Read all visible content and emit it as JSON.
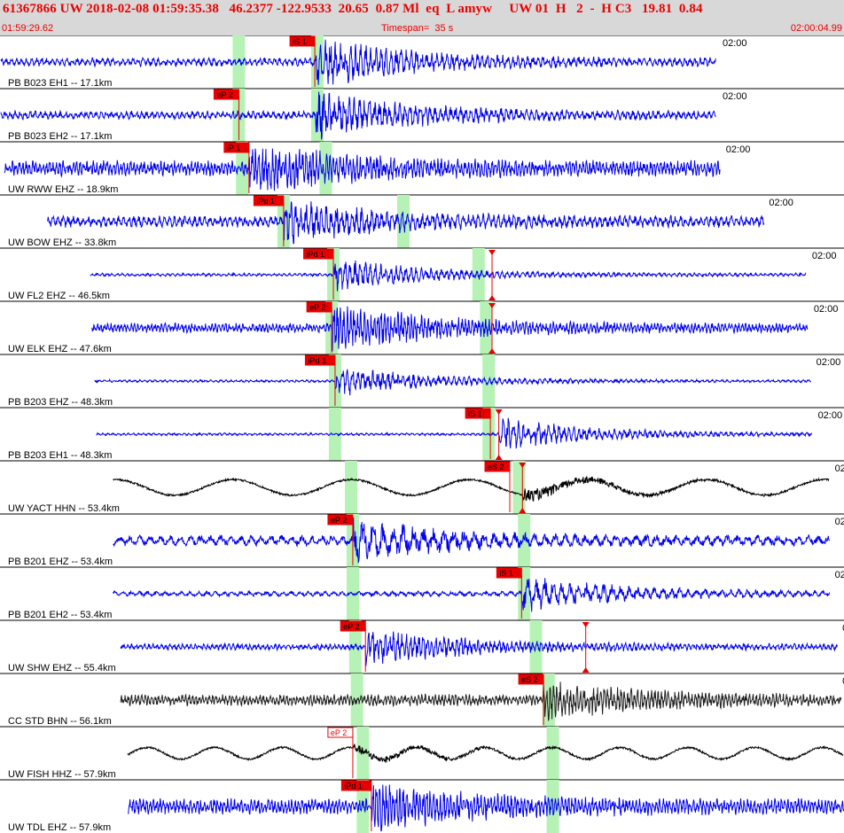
{
  "header": {
    "title": "61367866 UW 2018-02-08 01:59:35.38   46.2377 -122.9533  20.65  0.87 Ml  eq  L amyw     UW 01  H   2  -  H C3   19.81  0.84",
    "start_time": "01:59:29.62",
    "timespan": "Timespan=  35 s",
    "end_time": "02:00:04.99"
  },
  "time_marker_label": "02:00",
  "traces": [
    {
      "label": "PB B023 EH1 -- 17.1km",
      "color": "#0000ee",
      "start": 0.001,
      "end": 0.848,
      "amp": 0.16,
      "period": 0.006,
      "burst": 0.374,
      "burst_amp": 0.85,
      "green": [
        0.283,
        0.376
      ],
      "picks": [
        {
          "label": "iS 1",
          "at": 0.373,
          "style": "filled"
        }
      ],
      "triangles": []
    },
    {
      "label": "PB B023 EH2 -- 17.1km",
      "color": "#0000ee",
      "start": 0.001,
      "end": 0.848,
      "amp": 0.16,
      "period": 0.006,
      "burst": 0.374,
      "burst_amp": 0.85,
      "green": [
        0.283,
        0.376
      ],
      "picks": [
        {
          "label": "eP 2",
          "at": 0.283,
          "style": "filled"
        }
      ],
      "triangles": []
    },
    {
      "label": "UW RWW EHZ -- 18.9km",
      "color": "#0000ee",
      "start": 0.005,
      "end": 0.853,
      "amp": 0.3,
      "period": 0.004,
      "burst": 0.295,
      "burst_amp": 0.8,
      "green": [
        0.287,
        0.386
      ],
      "picks": [
        {
          "label": "iP 1",
          "at": 0.295,
          "style": "filled"
        }
      ],
      "triangles": []
    },
    {
      "label": "UW BOW EHZ -- 33.8km",
      "color": "#0000ee",
      "start": 0.056,
      "end": 0.905,
      "amp": 0.22,
      "period": 0.006,
      "burst": 0.336,
      "burst_amp": 0.7,
      "green": [
        0.336,
        0.478
      ],
      "picks": [
        {
          "label": "iPd 1",
          "at": 0.336,
          "style": "filled"
        }
      ],
      "triangles": []
    },
    {
      "label": "UW FL2 EHZ -- 46.5km",
      "color": "#0000ee",
      "start": 0.107,
      "end": 0.955,
      "amp": 0.06,
      "period": 0.006,
      "burst": 0.395,
      "burst_amp": 0.6,
      "green": [
        0.395,
        0.567
      ],
      "picks": [
        {
          "label": "iPd 1",
          "at": 0.395,
          "style": "filled"
        }
      ],
      "triangles": [
        0.583
      ]
    },
    {
      "label": "UW ELK EHZ -- 47.6km",
      "color": "#0000ee",
      "start": 0.109,
      "end": 0.957,
      "amp": 0.18,
      "period": 0.004,
      "burst": 0.393,
      "burst_amp": 0.85,
      "green": [
        0.393,
        0.576
      ],
      "picks": [
        {
          "label": "eP 2",
          "at": 0.393,
          "style": "filled"
        }
      ],
      "triangles": [
        0.583
      ]
    },
    {
      "label": "PB B203 EHZ -- 48.3km",
      "color": "#0000ee",
      "start": 0.112,
      "end": 0.961,
      "amp": 0.05,
      "period": 0.006,
      "burst": 0.397,
      "burst_amp": 0.55,
      "green": [
        0.397,
        0.579
      ],
      "picks": [
        {
          "label": "iPd 1",
          "at": 0.397,
          "style": "filled"
        }
      ],
      "triangles": []
    },
    {
      "label": "PB B203 EH1 -- 48.3km",
      "color": "#0000ee",
      "start": 0.114,
      "end": 0.962,
      "amp": 0.05,
      "period": 0.006,
      "burst": 0.591,
      "burst_amp": 0.6,
      "green": [
        0.397,
        0.579
      ],
      "picks": [
        {
          "label": "iS 1",
          "at": 0.581,
          "style": "filled"
        }
      ],
      "triangles": [
        0.591
      ]
    },
    {
      "label": "UW YACT HHN -- 53.4km",
      "color": "#000000",
      "start": 0.134,
      "end": 0.982,
      "amp": 0.38,
      "period": 0.14,
      "burst": 0.619,
      "burst_amp": 0.55,
      "green": [
        0.416,
        0.615
      ],
      "picks": [
        {
          "label": "eS 2",
          "at": 0.604,
          "style": "filled"
        }
      ],
      "triangles": [
        0.619
      ]
    },
    {
      "label": "PB B201 EHZ -- 53.4km",
      "color": "#0000ee",
      "start": 0.134,
      "end": 0.983,
      "amp": 0.2,
      "period": 0.012,
      "burst": 0.418,
      "burst_amp": 0.7,
      "green": [
        0.418,
        0.621
      ],
      "picks": [
        {
          "label": "eP 2",
          "at": 0.418,
          "style": "filled"
        }
      ],
      "triangles": []
    },
    {
      "label": "PB B201 EH2 -- 53.4km",
      "color": "#0000ee",
      "start": 0.134,
      "end": 0.983,
      "amp": 0.1,
      "period": 0.01,
      "burst": 0.618,
      "burst_amp": 0.65,
      "green": [
        0.418,
        0.621
      ],
      "picks": [
        {
          "label": "iS 1",
          "at": 0.618,
          "style": "filled"
        }
      ],
      "triangles": []
    },
    {
      "label": "UW SHW EHZ -- 55.4km",
      "color": "#0000ee",
      "start": 0.143,
      "end": 0.992,
      "amp": 0.12,
      "period": 0.005,
      "burst": 0.433,
      "burst_amp": 0.65,
      "green": [
        0.421,
        0.635
      ],
      "picks": [
        {
          "label": "eP 2",
          "at": 0.433,
          "style": "filled"
        }
      ],
      "triangles": [
        0.694
      ]
    },
    {
      "label": "CC STD BHN -- 56.1km",
      "color": "#202020",
      "start": 0.143,
      "end": 0.997,
      "amp": 0.22,
      "period": 0.004,
      "burst": 0.644,
      "burst_amp": 0.6,
      "green": [
        0.423,
        0.65
      ],
      "picks": [
        {
          "label": "eS 2",
          "at": 0.644,
          "style": "filled"
        }
      ],
      "triangles": []
    },
    {
      "label": "UW FISH HHZ -- 57.9km",
      "color": "#000000",
      "start": 0.151,
      "end": 0.999,
      "amp": 0.28,
      "period": 0.08,
      "burst": 0.418,
      "burst_amp": 0.35,
      "green": [
        0.43,
        0.655
      ],
      "picks": [
        {
          "label": "eP 2",
          "at": 0.418,
          "style": "outline"
        }
      ],
      "triangles": []
    },
    {
      "label": "UW TDL EHZ -- 57.9km",
      "color": "#0000ee",
      "start": 0.152,
      "end": 1.0,
      "amp": 0.3,
      "period": 0.004,
      "burst": 0.44,
      "burst_amp": 0.8,
      "green": [
        0.43,
        0.655
      ],
      "picks": [
        {
          "label": "iPd 1",
          "at": 0.44,
          "style": "filled"
        }
      ],
      "triangles": []
    }
  ]
}
